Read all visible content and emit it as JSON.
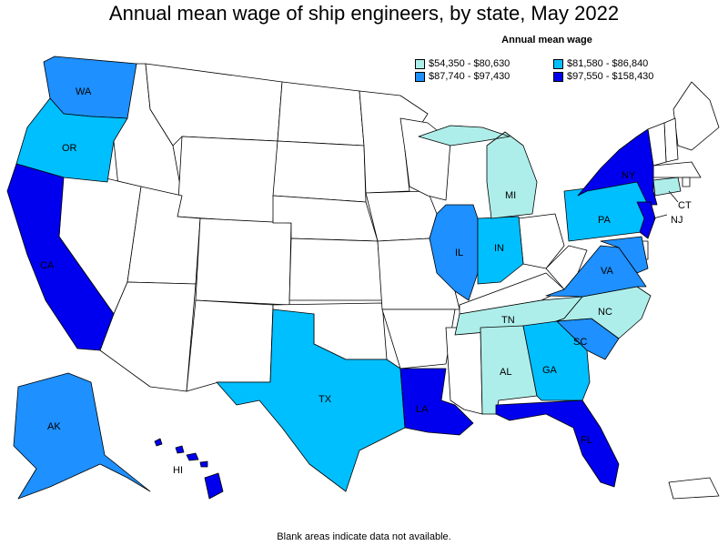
{
  "title": "Annual mean wage of ship engineers, by state, May 2022",
  "legend": {
    "title": "Annual mean wage",
    "items": [
      {
        "label": "$54,350 - $80,630",
        "color": "#aeeeea"
      },
      {
        "label": "$81,580 - $86,840",
        "color": "#00bfff"
      },
      {
        "label": "$87,740 - $97,430",
        "color": "#1e90ff"
      },
      {
        "label": "$97,550 - $158,430",
        "color": "#0000ee"
      }
    ]
  },
  "footnote": "Blank areas indicate data not available.",
  "colors": {
    "nodata": "#ffffff",
    "border": "#000000"
  },
  "states": [
    {
      "abbr": "WA",
      "tier": 2
    },
    {
      "abbr": "OR",
      "tier": 1
    },
    {
      "abbr": "CA",
      "tier": 3
    },
    {
      "abbr": "AK",
      "tier": 2
    },
    {
      "abbr": "HI",
      "tier": 3
    },
    {
      "abbr": "TX",
      "tier": 1
    },
    {
      "abbr": "LA",
      "tier": 3
    },
    {
      "abbr": "IL",
      "tier": 2
    },
    {
      "abbr": "IN",
      "tier": 1
    },
    {
      "abbr": "MI",
      "tier": 0
    },
    {
      "abbr": "TN",
      "tier": 0
    },
    {
      "abbr": "AL",
      "tier": 0
    },
    {
      "abbr": "GA",
      "tier": 1
    },
    {
      "abbr": "FL",
      "tier": 3
    },
    {
      "abbr": "SC",
      "tier": 2
    },
    {
      "abbr": "NC",
      "tier": 0
    },
    {
      "abbr": "VA",
      "tier": 2
    },
    {
      "abbr": "PA",
      "tier": 1
    },
    {
      "abbr": "NY",
      "tier": 3
    },
    {
      "abbr": "NJ",
      "tier": 3
    },
    {
      "abbr": "CT",
      "tier": 0
    },
    {
      "abbr": "MD",
      "tier": 2
    }
  ]
}
